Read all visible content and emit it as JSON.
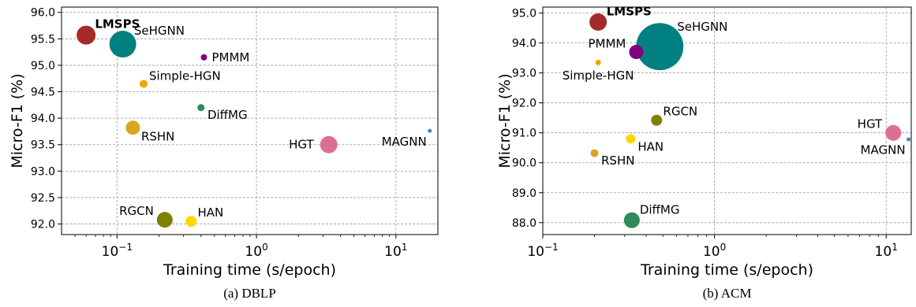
{
  "chart_data": [
    {
      "type": "scatter",
      "caption": "(a) DBLP",
      "xlabel": "Training time (s/epoch)",
      "ylabel": "Micro-F1 (%)",
      "xscale": "log",
      "xlim": [
        0.04,
        20
      ],
      "ylim": [
        91.8,
        96.1
      ],
      "xticks": [
        0.1,
        1,
        10
      ],
      "xtick_labels": [
        {
          "base": "10",
          "exp": "−1"
        },
        {
          "base": "10",
          "exp": "0"
        },
        {
          "base": "10",
          "exp": "1"
        }
      ],
      "yticks": [
        92.0,
        92.5,
        93.0,
        93.5,
        94.0,
        94.5,
        95.0,
        95.5,
        96.0
      ],
      "ytick_labels": [
        "92.0",
        "92.5",
        "93.0",
        "93.5",
        "94.0",
        "94.5",
        "95.0",
        "95.5",
        "96.0"
      ],
      "grid": true,
      "points": [
        {
          "name": "LMSPS",
          "x": 0.06,
          "y": 95.57,
          "size": 12,
          "color": "#a52a2a",
          "bold": true,
          "label_pos": "upper-right"
        },
        {
          "name": "SeHGNN",
          "x": 0.11,
          "y": 95.4,
          "size": 17,
          "color": "#008080",
          "bold": false,
          "label_pos": "upper-right"
        },
        {
          "name": "PMMM",
          "x": 0.42,
          "y": 95.15,
          "size": 4,
          "color": "#800080",
          "bold": false,
          "label_pos": "right"
        },
        {
          "name": "Simple-HGN",
          "x": 0.155,
          "y": 94.65,
          "size": 5,
          "color": "#f5a300",
          "bold": false,
          "label_pos": "upper-right"
        },
        {
          "name": "DiffMG",
          "x": 0.4,
          "y": 94.2,
          "size": 4.5,
          "color": "#2e8b57",
          "bold": false,
          "label_pos": "lower-right"
        },
        {
          "name": "RSHN",
          "x": 0.13,
          "y": 93.82,
          "size": 9,
          "color": "#daa520",
          "bold": false,
          "label_pos": "lower-right"
        },
        {
          "name": "HGT",
          "x": 3.3,
          "y": 93.5,
          "size": 11,
          "color": "#db7093",
          "bold": false,
          "label_pos": "left"
        },
        {
          "name": "MAGNN",
          "x": 17.5,
          "y": 93.76,
          "size": 2.5,
          "color": "#4682b4",
          "bold": false,
          "label_pos": "lower-left"
        },
        {
          "name": "RGCN",
          "x": 0.22,
          "y": 92.08,
          "size": 10,
          "color": "#808000",
          "bold": false,
          "label_pos": "upper-left"
        },
        {
          "name": "HAN",
          "x": 0.34,
          "y": 92.05,
          "size": 7,
          "color": "#ffd700",
          "bold": false,
          "label_pos": "upper-right"
        }
      ]
    },
    {
      "type": "scatter",
      "caption": "(b) ACM",
      "xlabel": "Training time (s/epoch)",
      "ylabel": "Micro-F1 (%)",
      "xscale": "log",
      "xlim": [
        0.1,
        14
      ],
      "ylim": [
        87.6,
        95.2
      ],
      "xticks": [
        0.1,
        1,
        10
      ],
      "xtick_labels": [
        {
          "base": "10",
          "exp": "−1"
        },
        {
          "base": "10",
          "exp": "0"
        },
        {
          "base": "10",
          "exp": "1"
        }
      ],
      "yticks": [
        88.0,
        89.0,
        90.0,
        91.0,
        92.0,
        93.0,
        94.0,
        95.0
      ],
      "ytick_labels": [
        "88.0",
        "89.0",
        "90.0",
        "91.0",
        "92.0",
        "93.0",
        "94.0",
        "95.0"
      ],
      "grid": true,
      "points": [
        {
          "name": "LMSPS",
          "x": 0.21,
          "y": 94.7,
          "size": 11,
          "color": "#a52a2a",
          "bold": true,
          "label_pos": "upper-right"
        },
        {
          "name": "SeHGNN",
          "x": 0.48,
          "y": 93.88,
          "size": 30,
          "color": "#008080",
          "bold": false,
          "label_pos": "upper-right"
        },
        {
          "name": "PMMM",
          "x": 0.35,
          "y": 93.7,
          "size": 9,
          "color": "#800080",
          "bold": false,
          "label_pos": "upper-left"
        },
        {
          "name": "Simple-HGN",
          "x": 0.21,
          "y": 93.35,
          "size": 3.5,
          "color": "#f5a300",
          "bold": false,
          "label_pos": "lower"
        },
        {
          "name": "RGCN",
          "x": 0.46,
          "y": 91.42,
          "size": 7,
          "color": "#808000",
          "bold": false,
          "label_pos": "upper-right"
        },
        {
          "name": "HGT",
          "x": 11.0,
          "y": 91.0,
          "size": 10,
          "color": "#db7093",
          "bold": false,
          "label_pos": "upper-left"
        },
        {
          "name": "MAGNN",
          "x": 13.5,
          "y": 90.78,
          "size": 2.5,
          "color": "#4682b4",
          "bold": false,
          "label_pos": "lower-left"
        },
        {
          "name": "HAN",
          "x": 0.325,
          "y": 90.8,
          "size": 6,
          "color": "#ffd700",
          "bold": false,
          "label_pos": "lower-right"
        },
        {
          "name": "RSHN",
          "x": 0.2,
          "y": 90.32,
          "size": 5,
          "color": "#daa520",
          "bold": false,
          "label_pos": "lower-right"
        },
        {
          "name": "DiffMG",
          "x": 0.33,
          "y": 88.08,
          "size": 10,
          "color": "#2e8b57",
          "bold": false,
          "label_pos": "upper-right"
        }
      ]
    }
  ]
}
